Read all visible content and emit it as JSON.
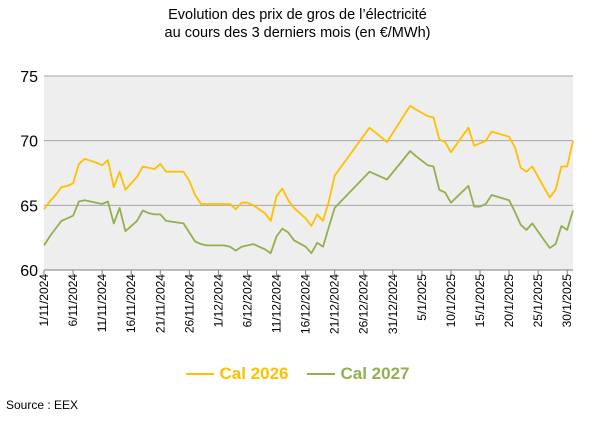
{
  "header": {
    "title": "Evolution des prix de gros de l’électricité",
    "subtitle": "au cours des 3 derniers mois (en €/MWh)"
  },
  "source": "Source : EEX",
  "colors": {
    "plot_background": "#eeeeee",
    "gridline": "#a6a6a6",
    "cal2026": "#ffc000",
    "cal2027": "#92b04f"
  },
  "chart_data": {
    "type": "line",
    "title": "Evolution des prix de gros de l’électricité au cours des 3 derniers mois (en €/MWh)",
    "xlabel": "",
    "ylabel": "",
    "ylim": [
      60,
      75
    ],
    "yticks": [
      60,
      65,
      70,
      75
    ],
    "grid": true,
    "legend_position": "bottom",
    "xlim": [
      "1/11/2024",
      "31/1/2025"
    ],
    "xticks": [
      "1/11/2024",
      "6/11/2024",
      "11/11/2024",
      "16/11/2024",
      "21/11/2024",
      "26/11/2024",
      "1/12/2024",
      "6/12/2024",
      "11/12/2024",
      "16/12/2024",
      "21/12/2024",
      "26/12/2024",
      "31/12/2024",
      "5/1/2025",
      "10/1/2025",
      "15/1/2025",
      "20/1/2025",
      "25/1/2025",
      "30/1/2025"
    ],
    "series": [
      {
        "name": "Cal 2026",
        "color": "#ffc000",
        "points": [
          [
            "1/11/2024",
            64.7
          ],
          [
            "2/11/2024",
            65.3
          ],
          [
            "3/11/2024",
            65.8
          ],
          [
            "4/11/2024",
            66.4
          ],
          [
            "5/11/2024",
            66.5
          ],
          [
            "6/11/2024",
            66.7
          ],
          [
            "7/11/2024",
            68.2
          ],
          [
            "8/11/2024",
            68.6
          ],
          [
            "10/11/2024",
            68.3
          ],
          [
            "11/11/2024",
            68.1
          ],
          [
            "12/11/2024",
            68.5
          ],
          [
            "13/11/2024",
            66.4
          ],
          [
            "14/11/2024",
            67.6
          ],
          [
            "15/11/2024",
            66.2
          ],
          [
            "17/11/2024",
            67.2
          ],
          [
            "18/11/2024",
            68.0
          ],
          [
            "19/11/2024",
            67.9
          ],
          [
            "20/11/2024",
            67.8
          ],
          [
            "21/11/2024",
            68.2
          ],
          [
            "22/11/2024",
            67.6
          ],
          [
            "25/11/2024",
            67.6
          ],
          [
            "26/11/2024",
            66.9
          ],
          [
            "27/11/2024",
            65.8
          ],
          [
            "28/11/2024",
            65.1
          ],
          [
            "29/11/2024",
            65.1
          ],
          [
            "2/12/2024",
            65.1
          ],
          [
            "3/12/2024",
            65.1
          ],
          [
            "4/12/2024",
            64.7
          ],
          [
            "5/12/2024",
            65.2
          ],
          [
            "6/12/2024",
            65.2
          ],
          [
            "7/12/2024",
            65.0
          ],
          [
            "9/12/2024",
            64.4
          ],
          [
            "10/12/2024",
            63.8
          ],
          [
            "11/12/2024",
            65.7
          ],
          [
            "12/12/2024",
            66.3
          ],
          [
            "13/12/2024",
            65.4
          ],
          [
            "14/12/2024",
            64.8
          ],
          [
            "16/12/2024",
            64.0
          ],
          [
            "17/12/2024",
            63.4
          ],
          [
            "18/12/2024",
            64.3
          ],
          [
            "19/12/2024",
            63.8
          ],
          [
            "20/12/2024",
            65.3
          ],
          [
            "21/12/2024",
            67.3
          ],
          [
            "27/12/2024",
            71.0
          ],
          [
            "30/12/2024",
            69.9
          ],
          [
            "3/1/2025",
            72.7
          ],
          [
            "4/1/2025",
            72.4
          ],
          [
            "6/1/2025",
            71.9
          ],
          [
            "7/1/2025",
            71.8
          ],
          [
            "8/1/2025",
            70.1
          ],
          [
            "9/1/2025",
            69.9
          ],
          [
            "10/1/2025",
            69.1
          ],
          [
            "13/1/2025",
            71.0
          ],
          [
            "14/1/2025",
            69.6
          ],
          [
            "15/1/2025",
            69.8
          ],
          [
            "16/1/2025",
            70.0
          ],
          [
            "17/1/2025",
            70.7
          ],
          [
            "20/1/2025",
            70.3
          ],
          [
            "21/1/2025",
            69.5
          ],
          [
            "22/1/2025",
            67.9
          ],
          [
            "23/1/2025",
            67.6
          ],
          [
            "24/1/2025",
            68.0
          ],
          [
            "27/1/2025",
            65.6
          ],
          [
            "28/1/2025",
            66.2
          ],
          [
            "29/1/2025",
            68.0
          ],
          [
            "30/1/2025",
            68.0
          ],
          [
            "31/1/2025",
            70.0
          ]
        ]
      },
      {
        "name": "Cal 2027",
        "color": "#92b04f",
        "points": [
          [
            "1/11/2024",
            61.9
          ],
          [
            "2/11/2024",
            62.6
          ],
          [
            "3/11/2024",
            63.2
          ],
          [
            "4/11/2024",
            63.8
          ],
          [
            "5/11/2024",
            64.0
          ],
          [
            "6/11/2024",
            64.2
          ],
          [
            "7/11/2024",
            65.3
          ],
          [
            "8/11/2024",
            65.4
          ],
          [
            "10/11/2024",
            65.2
          ],
          [
            "11/11/2024",
            65.1
          ],
          [
            "12/11/2024",
            65.3
          ],
          [
            "13/11/2024",
            63.6
          ],
          [
            "14/11/2024",
            64.8
          ],
          [
            "15/11/2024",
            63.0
          ],
          [
            "17/11/2024",
            63.8
          ],
          [
            "18/11/2024",
            64.6
          ],
          [
            "19/11/2024",
            64.4
          ],
          [
            "20/11/2024",
            64.3
          ],
          [
            "21/11/2024",
            64.3
          ],
          [
            "22/11/2024",
            63.8
          ],
          [
            "25/11/2024",
            63.6
          ],
          [
            "26/11/2024",
            62.9
          ],
          [
            "27/11/2024",
            62.2
          ],
          [
            "28/11/2024",
            62.0
          ],
          [
            "29/11/2024",
            61.9
          ],
          [
            "2/12/2024",
            61.9
          ],
          [
            "3/12/2024",
            61.8
          ],
          [
            "4/12/2024",
            61.5
          ],
          [
            "5/12/2024",
            61.8
          ],
          [
            "6/12/2024",
            61.9
          ],
          [
            "7/12/2024",
            62.0
          ],
          [
            "9/12/2024",
            61.6
          ],
          [
            "10/12/2024",
            61.3
          ],
          [
            "11/12/2024",
            62.6
          ],
          [
            "12/12/2024",
            63.2
          ],
          [
            "13/12/2024",
            62.9
          ],
          [
            "14/12/2024",
            62.3
          ],
          [
            "16/12/2024",
            61.8
          ],
          [
            "17/12/2024",
            61.3
          ],
          [
            "18/12/2024",
            62.1
          ],
          [
            "19/12/2024",
            61.8
          ],
          [
            "20/12/2024",
            63.3
          ],
          [
            "21/12/2024",
            64.8
          ],
          [
            "27/12/2024",
            67.6
          ],
          [
            "30/12/2024",
            67.0
          ],
          [
            "3/1/2025",
            69.2
          ],
          [
            "4/1/2025",
            68.8
          ],
          [
            "6/1/2025",
            68.1
          ],
          [
            "7/1/2025",
            68.0
          ],
          [
            "8/1/2025",
            66.2
          ],
          [
            "9/1/2025",
            66.0
          ],
          [
            "10/1/2025",
            65.2
          ],
          [
            "13/1/2025",
            66.5
          ],
          [
            "14/1/2025",
            64.9
          ],
          [
            "15/1/2025",
            64.9
          ],
          [
            "16/1/2025",
            65.1
          ],
          [
            "17/1/2025",
            65.8
          ],
          [
            "20/1/2025",
            65.4
          ],
          [
            "21/1/2025",
            64.5
          ],
          [
            "22/1/2025",
            63.5
          ],
          [
            "23/1/2025",
            63.1
          ],
          [
            "24/1/2025",
            63.6
          ],
          [
            "27/1/2025",
            61.7
          ],
          [
            "28/1/2025",
            62.0
          ],
          [
            "29/1/2025",
            63.4
          ],
          [
            "30/1/2025",
            63.1
          ],
          [
            "31/1/2025",
            64.6
          ]
        ]
      }
    ]
  }
}
